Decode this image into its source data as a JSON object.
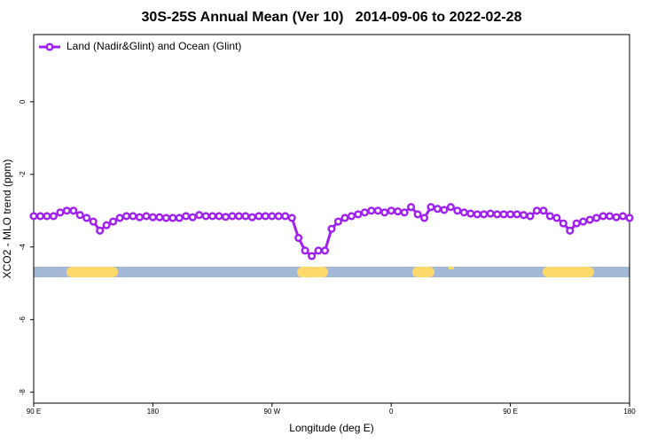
{
  "chart_data": {
    "type": "line",
    "title": "30S-25S Annual Mean (Ver 10)   2014-09-06 to 2022-02-28",
    "x_label": "Longitude (deg E)",
    "y_label": "XCO2 - MLO trend (ppm)",
    "x": [
      90,
      95,
      100,
      105,
      110,
      115,
      120,
      125,
      130,
      135,
      140,
      145,
      150,
      155,
      160,
      165,
      170,
      175,
      180,
      185,
      190,
      195,
      200,
      205,
      210,
      215,
      220,
      225,
      230,
      235,
      240,
      245,
      250,
      255,
      260,
      265,
      270,
      275,
      280,
      285,
      290,
      295,
      300,
      305,
      310,
      315,
      320,
      325,
      330,
      335,
      340,
      345,
      350,
      355,
      360,
      365,
      370,
      375,
      380,
      385,
      390,
      395,
      400,
      405,
      410,
      415,
      420,
      425,
      430,
      435,
      440,
      445,
      450,
      455,
      460,
      465,
      470,
      475,
      480,
      485,
      490,
      495,
      500,
      505,
      510,
      515,
      520,
      525,
      530,
      535,
      540
    ],
    "series": [
      {
        "name": "Land (Nadir&Glint) and Ocean (Glint)",
        "color": "#a020f0",
        "values": [
          -3.15,
          -3.15,
          -3.15,
          -3.15,
          -3.05,
          -3.0,
          -3.0,
          -3.12,
          -3.2,
          -3.3,
          -3.55,
          -3.4,
          -3.3,
          -3.2,
          -3.15,
          -3.15,
          -3.18,
          -3.15,
          -3.18,
          -3.18,
          -3.2,
          -3.2,
          -3.2,
          -3.15,
          -3.18,
          -3.12,
          -3.15,
          -3.15,
          -3.15,
          -3.17,
          -3.15,
          -3.15,
          -3.15,
          -3.18,
          -3.15,
          -3.15,
          -3.15,
          -3.15,
          -3.15,
          -3.2,
          -3.75,
          -4.1,
          -4.25,
          -4.1,
          -4.1,
          -3.5,
          -3.3,
          -3.2,
          -3.15,
          -3.1,
          -3.05,
          -3.0,
          -3.0,
          -3.05,
          -3.0,
          -3.02,
          -3.05,
          -2.9,
          -3.1,
          -3.2,
          -2.9,
          -2.95,
          -2.98,
          -2.9,
          -3.0,
          -3.05,
          -3.08,
          -3.1,
          -3.1,
          -3.08,
          -3.1,
          -3.1,
          -3.1,
          -3.1,
          -3.12,
          -3.15,
          -3.0,
          -3.0,
          -3.15,
          -3.2,
          -3.35,
          -3.55,
          -3.35,
          -3.3,
          -3.25,
          -3.2,
          -3.15,
          -3.15,
          -3.18,
          -3.15,
          -3.2
        ]
      }
    ],
    "xlim": [
      90,
      540
    ],
    "xticks": [
      {
        "value": 90,
        "label": "90 E"
      },
      180,
      {
        "value": 270,
        "label": "90 W"
      },
      {
        "value": 360,
        "label": "0"
      },
      {
        "value": 450,
        "label": "90 E"
      },
      {
        "value": 540,
        "label": "180"
      }
    ],
    "ylim": [
      -8.3,
      1.85
    ],
    "yticks": [
      0,
      -2,
      -4,
      -6,
      -8
    ],
    "legend": "top-left"
  }
}
